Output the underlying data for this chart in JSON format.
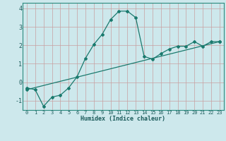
{
  "xlabel": "Humidex (Indice chaleur)",
  "background_color": "#cde8ec",
  "grid_color": "#aac8cc",
  "line_color": "#1a7a6e",
  "xlim": [
    -0.5,
    23.5
  ],
  "ylim": [
    -1.5,
    4.3
  ],
  "yticks": [
    -1,
    0,
    1,
    2,
    3,
    4
  ],
  "xticks": [
    0,
    1,
    2,
    3,
    4,
    5,
    6,
    7,
    8,
    9,
    10,
    11,
    12,
    13,
    14,
    15,
    16,
    17,
    18,
    19,
    20,
    21,
    22,
    23
  ],
  "curve1_x": [
    0,
    1,
    2,
    3,
    4,
    5,
    6,
    7,
    8,
    9,
    10,
    11,
    12,
    13,
    14,
    15,
    16,
    17,
    18,
    19,
    20,
    21,
    22,
    23
  ],
  "curve1_y": [
    -0.3,
    -0.4,
    -1.3,
    -0.8,
    -0.7,
    -0.3,
    0.3,
    1.3,
    2.05,
    2.6,
    3.4,
    3.85,
    3.85,
    3.5,
    1.4,
    1.25,
    1.55,
    1.8,
    1.95,
    1.95,
    2.2,
    1.95,
    2.2,
    2.2
  ],
  "curve2_x": [
    0,
    23
  ],
  "curve2_y": [
    -0.4,
    2.2
  ]
}
